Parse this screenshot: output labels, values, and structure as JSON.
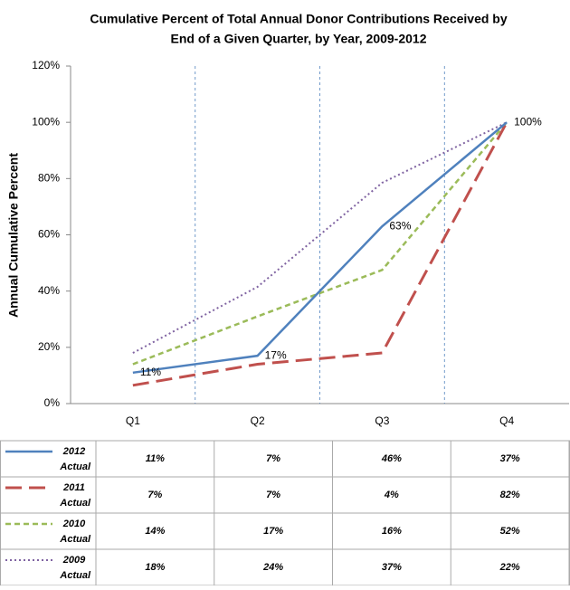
{
  "chart_data": {
    "type": "line",
    "title": [
      "Cumulative Percent of Total Annual Donor Contributions Received by",
      "End of a Given Quarter, by Year, 2009-2012"
    ],
    "y_label": "Annual Cumulative Percent",
    "categories": [
      "Q1",
      "Q2",
      "Q3",
      "Q4"
    ],
    "ylim": [
      0,
      120
    ],
    "yticks": [
      {
        "value": 0,
        "label": "0%"
      },
      {
        "value": 20,
        "label": "20%"
      },
      {
        "value": 40,
        "label": "40%"
      },
      {
        "value": 60,
        "label": "60%"
      },
      {
        "value": 80,
        "label": "80%"
      },
      {
        "value": 100,
        "label": "100%"
      },
      {
        "value": 120,
        "label": "120%"
      }
    ],
    "series": [
      {
        "name": "2012 Actual",
        "color": "#4f81bd",
        "dash": "solid",
        "values": [
          11,
          17,
          63,
          100
        ],
        "value_labels": [
          "11%",
          "17%",
          "63%",
          "100%"
        ],
        "table": [
          "11%",
          "7%",
          "46%",
          "37%"
        ]
      },
      {
        "name": "2011 Actual",
        "color": "#c0504d",
        "dash": "long-dash",
        "values": [
          6.5,
          14,
          18,
          100
        ],
        "table": [
          "7%",
          "7%",
          "4%",
          "82%"
        ]
      },
      {
        "name": "2010 Actual",
        "color": "#9bbb59",
        "dash": "dash",
        "values": [
          14,
          31,
          47.5,
          100
        ],
        "table": [
          "14%",
          "17%",
          "16%",
          "52%"
        ]
      },
      {
        "name": "2009 Actual",
        "color": "#8064a2",
        "dash": "dot",
        "values": [
          18,
          41.5,
          78.5,
          100
        ],
        "table": [
          "18%",
          "24%",
          "37%",
          "22%"
        ]
      }
    ]
  }
}
